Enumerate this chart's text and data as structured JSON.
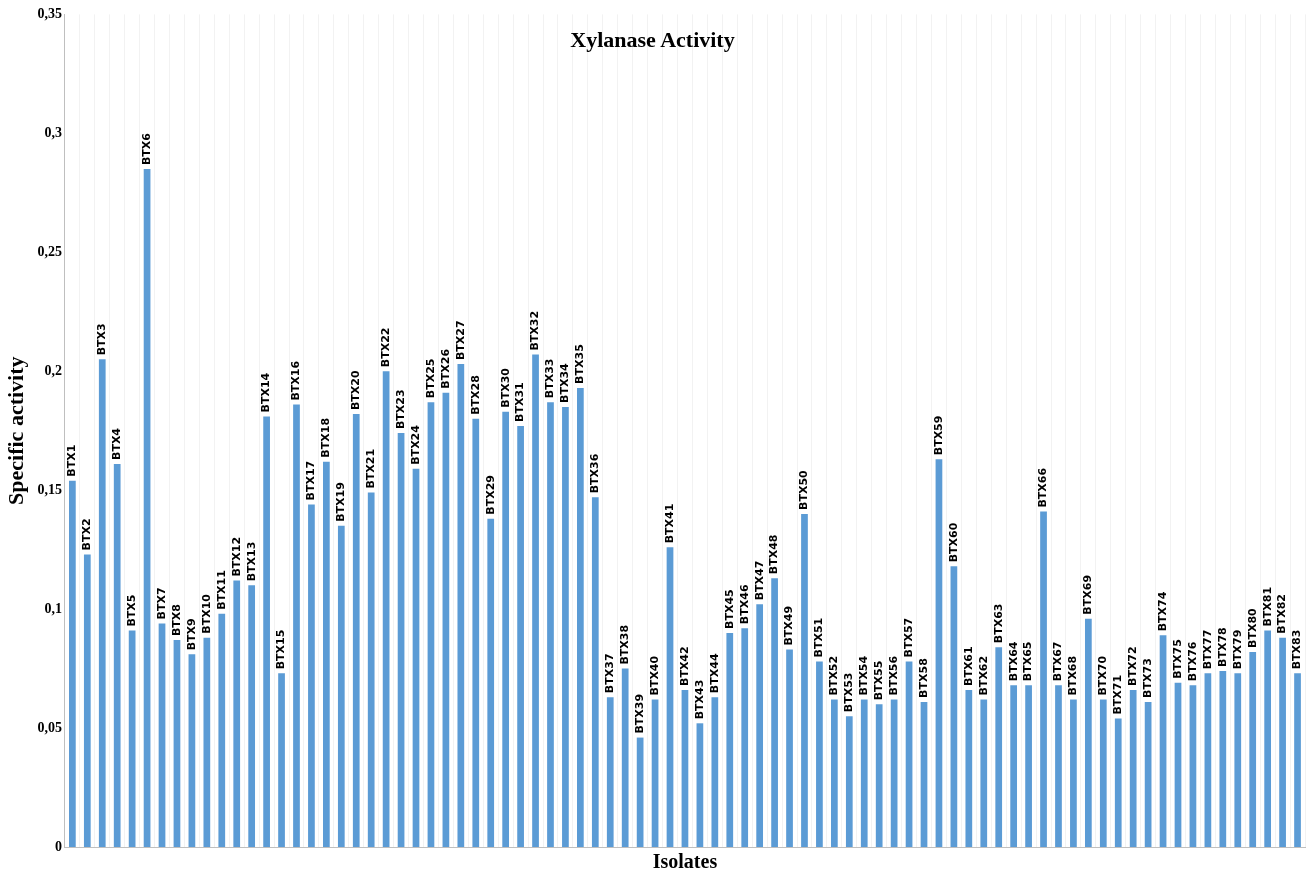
{
  "chart_data": {
    "type": "bar",
    "title": "Xylanase Activity",
    "xlabel": "Isolates",
    "ylabel": "Specific activity",
    "categories": [
      "BTX1",
      "BTX2",
      "BTX3",
      "BTX4",
      "BTX5",
      "BTX6",
      "BTX7",
      "BTX8",
      "BTX9",
      "BTX10",
      "BTX11",
      "BTX12",
      "BTX13",
      "BTX14",
      "BTX15",
      "BTX16",
      "BTX17",
      "BTX18",
      "BTX19",
      "BTX20",
      "BTX21",
      "BTX22",
      "BTX23",
      "BTX24",
      "BTX25",
      "BTX26",
      "BTX27",
      "BTX28",
      "BTX29",
      "BTX30",
      "BTX31",
      "BTX32",
      "BTX33",
      "BTX34",
      "BTX35",
      "BTX36",
      "BTX37",
      "BTX38",
      "BTX39",
      "BTX40",
      "BTX41",
      "BTX42",
      "BTX43",
      "BTX44",
      "BTX45",
      "BTX46",
      "BTX47",
      "BTX48",
      "BTX49",
      "BTX50",
      "BTX51",
      "BTX52",
      "BTX53",
      "BTX54",
      "BTX55",
      "BTX56",
      "BTX57",
      "BTX58",
      "BTX59",
      "BTX60",
      "BTX61",
      "BTX62",
      "BTX63",
      "BTX64",
      "BTX65",
      "BTX66",
      "BTX67",
      "BTX68",
      "BTX69",
      "BTX70",
      "BTX71",
      "BTX72",
      "BTX73",
      "BTX74",
      "BTX75",
      "BTX76",
      "BTX77",
      "BTX78",
      "BTX79",
      "BTX80",
      "BTX81",
      "BTX82",
      "BTX83"
    ],
    "values": [
      0.154,
      0.123,
      0.205,
      0.161,
      0.091,
      0.285,
      0.094,
      0.087,
      0.081,
      0.088,
      0.098,
      0.112,
      0.11,
      0.181,
      0.073,
      0.186,
      0.144,
      0.162,
      0.135,
      0.182,
      0.149,
      0.2,
      0.174,
      0.159,
      0.187,
      0.191,
      0.203,
      0.18,
      0.138,
      0.183,
      0.177,
      0.207,
      0.187,
      0.185,
      0.193,
      0.147,
      0.063,
      0.075,
      0.046,
      0.062,
      0.126,
      0.066,
      0.052,
      0.063,
      0.09,
      0.092,
      0.102,
      0.113,
      0.083,
      0.14,
      0.078,
      0.062,
      0.055,
      0.062,
      0.06,
      0.062,
      0.078,
      0.061,
      0.163,
      0.118,
      0.066,
      0.062,
      0.084,
      0.068,
      0.068,
      0.141,
      0.068,
      0.062,
      0.096,
      0.062,
      0.054,
      0.066,
      0.061,
      0.089,
      0.069,
      0.068,
      0.073,
      0.074,
      0.073,
      0.082,
      0.091,
      0.088,
      0.073
    ],
    "color": "#5b9bd5",
    "ylim": [
      0,
      0.35
    ],
    "yticks": [
      0,
      {
        "value": 0.05,
        "label": "0,05"
      },
      {
        "value": 0.1,
        "label": "0,1"
      },
      {
        "value": 0.15,
        "label": "0,15"
      },
      {
        "value": 0.2,
        "label": "0,2"
      },
      {
        "value": 0.25,
        "label": "0,25"
      },
      {
        "value": 0.3,
        "label": "0,3"
      },
      {
        "value": 0.35,
        "label": "0,35"
      }
    ],
    "grid": "x",
    "legend": false
  }
}
